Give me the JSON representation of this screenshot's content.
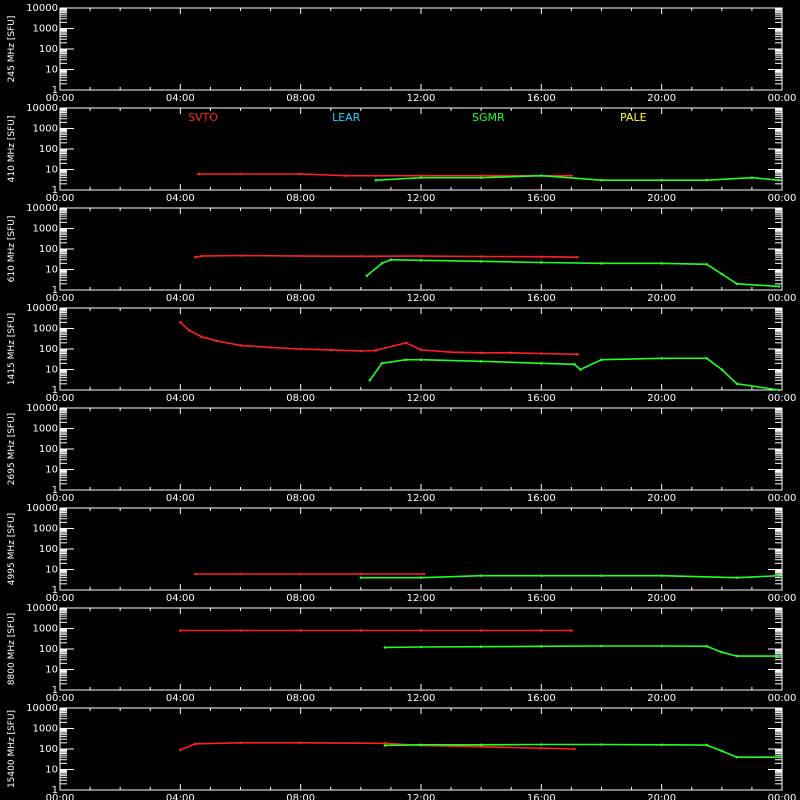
{
  "chart_data": {
    "type": "scatter",
    "title": "",
    "xlabel": "",
    "x_ticks": [
      "00:00",
      "04:00",
      "08:00",
      "12:00",
      "16:00",
      "20:00",
      "00:00"
    ],
    "x_range_hours": [
      0,
      24
    ],
    "y_scale": "log",
    "y_ticks": [
      "10000",
      "1000",
      "100",
      "10",
      "1"
    ],
    "ylim": [
      1,
      10000
    ],
    "legend": [
      {
        "name": "SVTO",
        "color": "#ff2020"
      },
      {
        "name": "LEAR",
        "color": "#20d0ff"
      },
      {
        "name": "SGMR",
        "color": "#20ff20"
      },
      {
        "name": "PALE",
        "color": "#ffff20"
      }
    ],
    "panels": [
      {
        "ylabel": "245 MHz [SFU]",
        "series": []
      },
      {
        "ylabel": "410 MHz [SFU]",
        "series": [
          {
            "station": "SVTO",
            "x": [
              4.6,
              6,
              8,
              9.5,
              10.5,
              12,
              14,
              17
            ],
            "y": [
              6,
              6,
              6,
              5,
              5,
              5,
              5,
              5
            ]
          },
          {
            "station": "SGMR",
            "x": [
              10.5,
              12,
              14,
              16,
              18,
              20,
              21.5,
              23,
              23.9
            ],
            "y": [
              3,
              4,
              4,
              5,
              3,
              3,
              3,
              4,
              3
            ]
          }
        ]
      },
      {
        "ylabel": "610 MHz [SFU]",
        "series": [
          {
            "station": "SVTO",
            "x": [
              4.5,
              4.7,
              6,
              8,
              10,
              12,
              14,
              16,
              17.2
            ],
            "y": [
              40,
              45,
              48,
              45,
              44,
              45,
              43,
              42,
              40
            ]
          },
          {
            "station": "SGMR",
            "x": [
              10.2,
              10.7,
              11,
              12,
              14,
              16,
              18,
              20,
              21.5,
              22,
              22.5,
              23.9
            ],
            "y": [
              5,
              20,
              30,
              28,
              25,
              22,
              20,
              20,
              18,
              6,
              2,
              1.5
            ]
          }
        ]
      },
      {
        "ylabel": "1415 MHz [SFU]",
        "series": [
          {
            "station": "SVTO",
            "x": [
              4.0,
              4.3,
              4.7,
              5.2,
              6,
              7,
              8,
              9,
              10,
              10.5,
              11.5,
              12,
              13,
              14,
              15,
              16,
              17.2
            ],
            "y": [
              2000,
              800,
              400,
              250,
              150,
              120,
              100,
              90,
              80,
              85,
              200,
              90,
              70,
              65,
              65,
              60,
              55
            ]
          },
          {
            "station": "SGMR",
            "x": [
              10.3,
              10.7,
              11.5,
              12,
              14,
              16,
              17.1,
              17.3,
              18,
              20,
              21.5,
              22,
              22.5,
              23.9
            ],
            "y": [
              3,
              20,
              30,
              30,
              25,
              20,
              18,
              10,
              30,
              35,
              35,
              10,
              2,
              1
            ]
          }
        ]
      },
      {
        "ylabel": "2695 MHz [SFU]",
        "series": []
      },
      {
        "ylabel": "4995 MHz [SFU]",
        "series": [
          {
            "station": "SVTO",
            "x": [
              4.5,
              6,
              8,
              10,
              12.1
            ],
            "y": [
              6,
              6,
              6,
              6,
              6
            ]
          },
          {
            "station": "SGMR",
            "x": [
              10,
              12,
              14,
              16,
              18,
              20,
              22.5,
              23.9
            ],
            "y": [
              4,
              4,
              5,
              5,
              5,
              5,
              4,
              5
            ]
          }
        ]
      },
      {
        "ylabel": "8800 MHz [SFU]",
        "series": [
          {
            "station": "SVTO",
            "x": [
              4.0,
              6,
              8,
              10,
              12,
              14,
              16,
              17.0
            ],
            "y": [
              800,
              800,
              800,
              800,
              800,
              800,
              800,
              800
            ]
          },
          {
            "station": "SGMR",
            "x": [
              10.8,
              12,
              14,
              16,
              18,
              20,
              21.5,
              22,
              22.5,
              23.9
            ],
            "y": [
              120,
              125,
              130,
              135,
              140,
              140,
              135,
              70,
              45,
              45
            ]
          }
        ]
      },
      {
        "ylabel": "15400 MHz [SFU]",
        "series": [
          {
            "station": "SVTO",
            "x": [
              4.0,
              4.5,
              6,
              8,
              10.8,
              12,
              14,
              16,
              17.1
            ],
            "y": [
              90,
              180,
              200,
              200,
              190,
              150,
              130,
              110,
              100
            ]
          },
          {
            "station": "SGMR",
            "x": [
              10.8,
              12,
              14,
              16,
              18,
              20,
              21.5,
              22,
              22.5,
              23.9
            ],
            "y": [
              150,
              160,
              160,
              165,
              165,
              160,
              155,
              80,
              40,
              40
            ]
          }
        ]
      }
    ]
  }
}
